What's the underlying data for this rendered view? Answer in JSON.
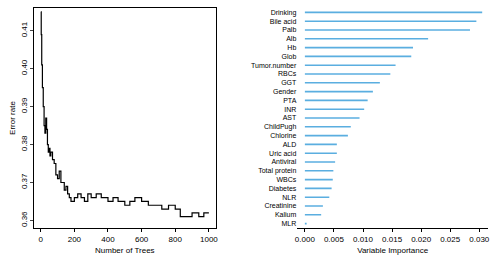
{
  "chart_data": [
    {
      "type": "line",
      "x_label": "Number of Trees",
      "y_label": "Error rate",
      "x": [
        1,
        3,
        6,
        10,
        15,
        20,
        25,
        30,
        35,
        40,
        45,
        50,
        55,
        60,
        70,
        80,
        90,
        100,
        110,
        120,
        130,
        140,
        150,
        160,
        170,
        180,
        200,
        220,
        240,
        260,
        280,
        300,
        330,
        360,
        400,
        430,
        460,
        500,
        530,
        560,
        600,
        640,
        680,
        720,
        760,
        800,
        830,
        870,
        900,
        940,
        970,
        1000
      ],
      "values": [
        0.415,
        0.409,
        0.401,
        0.395,
        0.39,
        0.385,
        0.383,
        0.387,
        0.384,
        0.38,
        0.378,
        0.379,
        0.377,
        0.378,
        0.376,
        0.375,
        0.372,
        0.371,
        0.373,
        0.37,
        0.37,
        0.368,
        0.369,
        0.367,
        0.366,
        0.365,
        0.366,
        0.367,
        0.366,
        0.365,
        0.367,
        0.366,
        0.367,
        0.366,
        0.365,
        0.366,
        0.365,
        0.364,
        0.365,
        0.366,
        0.365,
        0.364,
        0.364,
        0.363,
        0.364,
        0.363,
        0.361,
        0.361,
        0.362,
        0.361,
        0.362,
        0.362
      ],
      "color": "#000000",
      "line_style": "step",
      "xlim": [
        -40,
        1040
      ],
      "ylim": [
        0.358,
        0.416
      ],
      "xticks": [
        0,
        200,
        400,
        600,
        800,
        1000
      ],
      "yticks": [
        0.36,
        0.37,
        0.38,
        0.39,
        {
          "value": 0.4,
          "label": "0.40"
        },
        0.41
      ]
    },
    {
      "type": "bar",
      "orientation": "horizontal",
      "x_label": "Variable Importance",
      "categories": [
        "Drinking",
        "Bile acid",
        "Palb",
        "Alb",
        "Hb",
        "Glob",
        "Tumor.number",
        "RBCs",
        "GGT",
        "Gender",
        "PTA",
        "INR",
        "AST",
        "ChildPugh",
        "Chlorine",
        "ALD",
        "Uric acid",
        "Antiviral",
        "Total protein",
        "WBCs",
        "Diabetes",
        "NLR",
        "Creatinine",
        "Kalium",
        "MLR"
      ],
      "values": [
        0.0305,
        0.0295,
        0.0284,
        0.0212,
        0.0186,
        0.0183,
        0.0156,
        0.0147,
        0.0129,
        0.0117,
        0.0108,
        0.0102,
        0.0094,
        0.0079,
        0.0074,
        0.0055,
        0.0055,
        0.0052,
        0.0049,
        0.0048,
        0.0046,
        0.0042,
        0.0031,
        0.0028,
        0.0003
      ],
      "color": "#5aaee0",
      "xlim": [
        -0.0013,
        0.0315
      ],
      "xticks": [
        {
          "value": 0,
          "label": "0.000"
        },
        0.005,
        {
          "value": 0.01,
          "label": "0.010"
        },
        0.015,
        {
          "value": 0.02,
          "label": "0.020"
        },
        0.025,
        {
          "value": 0.03,
          "label": "0.030"
        }
      ]
    }
  ]
}
